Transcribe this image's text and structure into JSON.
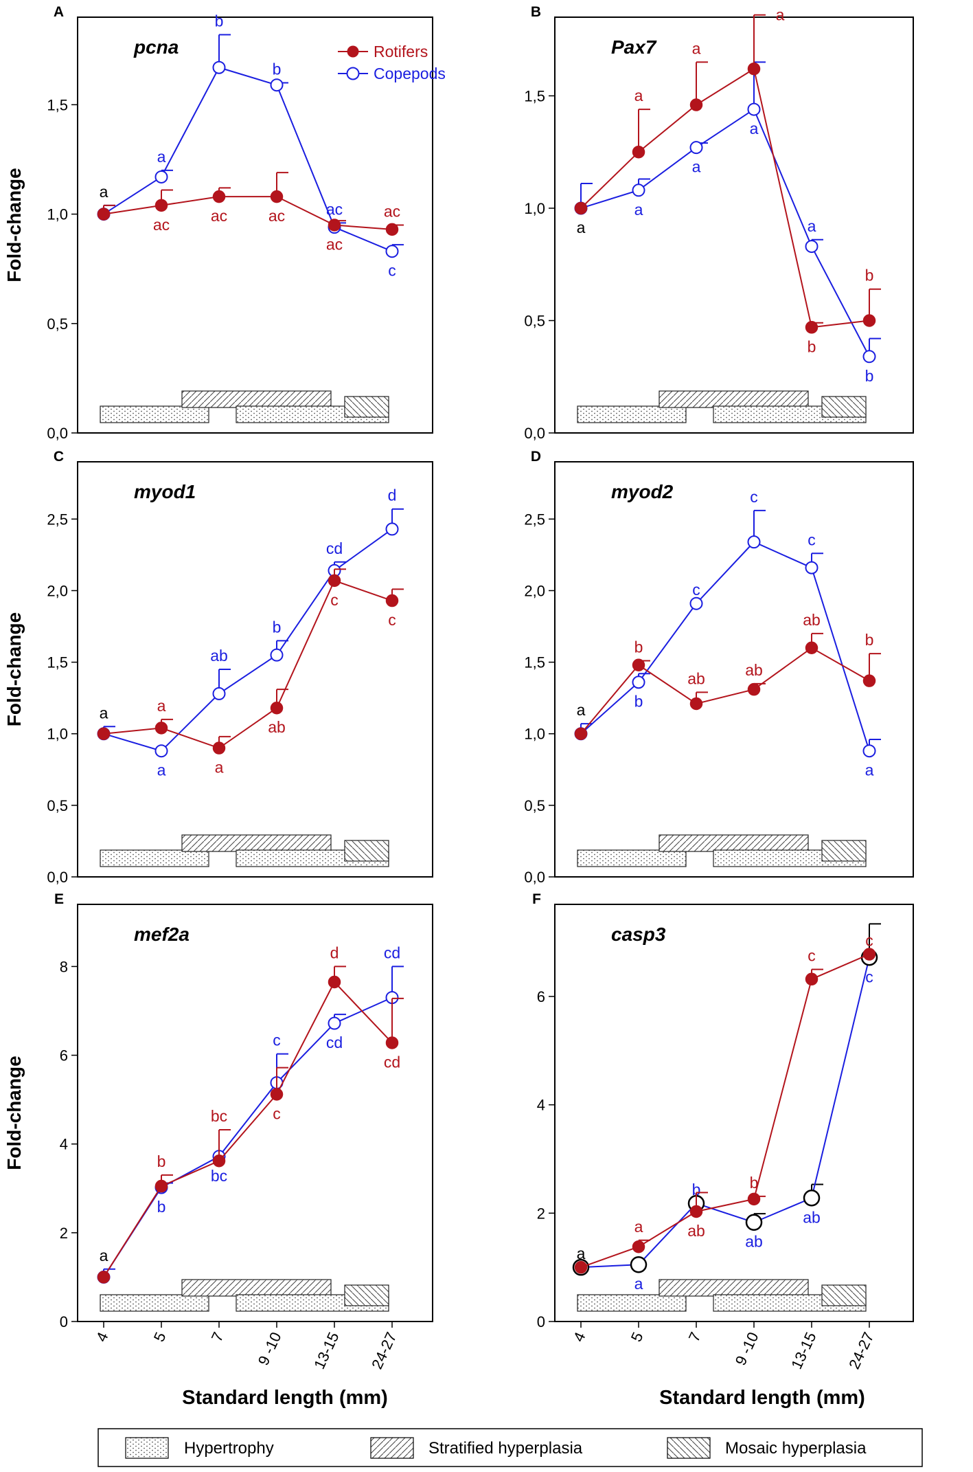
{
  "colors": {
    "rotifers": "#b3141c",
    "copepods": "#1a1ee0",
    "axis": "#000000",
    "black_label": "#000000"
  },
  "figure": {
    "xaxis_title": "Standard length (mm)",
    "legend_bottom": {
      "hypertrophy": "Hypertrophy",
      "stratified": "Stratified hyperplasia",
      "mosaic": "Mosaic hyperplasia"
    }
  },
  "chart_data": [
    {
      "type": "line",
      "panel": "A",
      "title": "pcna",
      "ylabel": "Fold-change",
      "ylim": [
        0,
        1.9
      ],
      "yticks": [
        "0,0",
        "0,5",
        "1,0",
        "1,5"
      ],
      "ytick_values": [
        0,
        0.5,
        1.0,
        1.5
      ],
      "categories": [
        "4",
        "5",
        "7",
        "9 -10",
        "13-15",
        "24-27"
      ],
      "show_xticks": false,
      "legend": [
        "Rotifers",
        "Copepods"
      ],
      "series": [
        {
          "name": "Rotifers",
          "marker": "filled",
          "values": [
            1.0,
            1.04,
            1.08,
            1.08,
            0.95,
            0.93
          ],
          "err": [
            0.04,
            0.07,
            0.04,
            0.11,
            0.02,
            0.02
          ],
          "letters": [
            "",
            "ac",
            "ac",
            "ac",
            "ac",
            "ac"
          ],
          "letter_pos": [
            "",
            "below",
            "below",
            "below",
            "below",
            "above"
          ]
        },
        {
          "name": "Copepods",
          "marker": "open",
          "values": [
            1.0,
            1.17,
            1.67,
            1.59,
            0.94,
            0.83
          ],
          "err": [
            0.04,
            0.03,
            0.15,
            0.01,
            0.02,
            0.03
          ],
          "letters": [
            "a",
            "a",
            "b",
            "b",
            "ac",
            "c"
          ],
          "letter_pos": [
            "above",
            "above",
            "above",
            "above",
            "above",
            "below"
          ]
        }
      ]
    },
    {
      "type": "line",
      "panel": "B",
      "title": "Pax7",
      "ylabel": "",
      "ylim": [
        0,
        1.85
      ],
      "yticks": [
        "0,0",
        "0,5",
        "1,0",
        "1,5"
      ],
      "ytick_values": [
        0,
        0.5,
        1.0,
        1.5
      ],
      "categories": [
        "4",
        "5",
        "7",
        "9 -10",
        "13-15",
        "24-27"
      ],
      "show_xticks": false,
      "series": [
        {
          "name": "Rotifers",
          "marker": "filled",
          "values": [
            1.0,
            1.25,
            1.46,
            1.62,
            0.47,
            0.5
          ],
          "err": [
            0.0,
            0.19,
            0.19,
            0.24,
            0.02,
            0.14
          ],
          "letters": [
            "",
            "a",
            "a",
            "a",
            "b",
            "b"
          ],
          "letter_pos": [
            "",
            "above",
            "above",
            "aboveRight",
            "below",
            "above"
          ]
        },
        {
          "name": "Copepods",
          "marker": "open",
          "values": [
            1.0,
            1.08,
            1.27,
            1.44,
            0.83,
            0.34
          ],
          "err": [
            0.11,
            0.05,
            0.02,
            0.21,
            0.03,
            0.08
          ],
          "letters": [
            "a",
            "a",
            "a",
            "a",
            "a",
            "b"
          ],
          "letter_pos": [
            "below",
            "below",
            "below",
            "below",
            "above",
            "below"
          ]
        }
      ]
    },
    {
      "type": "line",
      "panel": "C",
      "title": "myod1",
      "ylabel": "Fold-change",
      "ylim": [
        0,
        2.9
      ],
      "yticks": [
        "0,0",
        "0,5",
        "1,0",
        "1,5",
        "2,0",
        "2,5"
      ],
      "ytick_values": [
        0,
        0.5,
        1.0,
        1.5,
        2.0,
        2.5
      ],
      "categories": [
        "4",
        "5",
        "7",
        "9 -10",
        "13-15",
        "24-27"
      ],
      "show_xticks": false,
      "series": [
        {
          "name": "Rotifers",
          "marker": "filled",
          "values": [
            1.0,
            1.04,
            0.9,
            1.18,
            2.07,
            1.93
          ],
          "err": [
            0.0,
            0.06,
            0.08,
            0.13,
            0.08,
            0.08
          ],
          "letters": [
            "",
            "a",
            "a",
            "ab",
            "c",
            "c"
          ],
          "letter_pos": [
            "",
            "above",
            "below",
            "below",
            "below",
            "below"
          ]
        },
        {
          "name": "Copepods",
          "marker": "open",
          "values": [
            1.0,
            0.88,
            1.28,
            1.55,
            2.14,
            2.43
          ],
          "err": [
            0.05,
            0.0,
            0.17,
            0.1,
            0.06,
            0.14
          ],
          "letters": [
            "a",
            "a",
            "ab",
            "b",
            "cd",
            "d"
          ],
          "letter_pos": [
            "above",
            "below",
            "above",
            "above",
            "above",
            "above"
          ]
        }
      ]
    },
    {
      "type": "line",
      "panel": "D",
      "title": "myod2",
      "ylabel": "",
      "ylim": [
        0,
        2.9
      ],
      "yticks": [
        "0,0",
        "0,5",
        "1,0",
        "1,5",
        "2,0",
        "2,5"
      ],
      "ytick_values": [
        0,
        0.5,
        1.0,
        1.5,
        2.0,
        2.5
      ],
      "categories": [
        "4",
        "5",
        "7",
        "9 -10",
        "13-15",
        "24-27"
      ],
      "show_xticks": false,
      "series": [
        {
          "name": "Rotifers",
          "marker": "filled",
          "values": [
            1.0,
            1.48,
            1.21,
            1.31,
            1.6,
            1.37
          ],
          "err": [
            0.0,
            0.03,
            0.08,
            0.04,
            0.1,
            0.19
          ],
          "letters": [
            "",
            "b",
            "ab",
            "ab",
            "ab",
            "b"
          ],
          "letter_pos": [
            "",
            "above",
            "above",
            "above",
            "above",
            "above"
          ]
        },
        {
          "name": "Copepods",
          "marker": "open",
          "values": [
            1.0,
            1.36,
            1.91,
            2.34,
            2.16,
            0.88
          ],
          "err": [
            0.07,
            0.06,
            0.0,
            0.22,
            0.1,
            0.08
          ],
          "letters": [
            "a",
            "b",
            "c",
            "c",
            "c",
            "a"
          ],
          "letter_pos": [
            "above",
            "below",
            "above",
            "above",
            "above",
            "below"
          ]
        }
      ]
    },
    {
      "type": "line",
      "panel": "E",
      "title": "mef2a",
      "ylabel": "Fold-change",
      "ylim": [
        0,
        9.4
      ],
      "yticks": [
        "0",
        "2",
        "4",
        "6",
        "8"
      ],
      "ytick_values": [
        0,
        2,
        4,
        6,
        8
      ],
      "categories": [
        "4",
        "5",
        "7",
        "9 -10",
        "13-15",
        "24-27"
      ],
      "show_xticks": true,
      "series": [
        {
          "name": "Rotifers",
          "marker": "filled",
          "values": [
            1.0,
            3.05,
            3.62,
            5.12,
            7.65,
            6.28
          ],
          "err": [
            0.0,
            0.25,
            0.7,
            0.6,
            0.35,
            1.0
          ],
          "letters": [
            "",
            "b",
            "bc",
            "c",
            "d",
            "cd"
          ],
          "letter_pos": [
            "",
            "above",
            "above",
            "below",
            "above",
            "below"
          ]
        },
        {
          "name": "Copepods",
          "marker": "open",
          "values": [
            1.0,
            3.02,
            3.72,
            5.38,
            6.72,
            7.3
          ],
          "err": [
            0.18,
            0.1,
            0.0,
            0.65,
            0.2,
            0.7
          ],
          "letters": [
            "a",
            "b",
            "bc",
            "c",
            "cd",
            "cd"
          ],
          "letter_pos": [
            "above",
            "below",
            "below",
            "above",
            "below",
            "above"
          ]
        }
      ]
    },
    {
      "type": "line",
      "panel": "F",
      "title": "casp3",
      "ylabel": "",
      "ylim": [
        0,
        7.7
      ],
      "yticks": [
        "0",
        "2",
        "4",
        "6"
      ],
      "ytick_values": [
        0,
        2,
        4,
        6
      ],
      "categories": [
        "4",
        "5",
        "7",
        "9 -10",
        "13-15",
        "24-27"
      ],
      "show_xticks": true,
      "series": [
        {
          "name": "Rotifers",
          "marker": "filled",
          "values": [
            1.0,
            1.38,
            2.03,
            2.26,
            6.32,
            6.78
          ],
          "err": [
            0.0,
            0.12,
            0.35,
            0.05,
            0.18,
            0.0
          ],
          "letters": [
            "",
            "a",
            "ab",
            "b",
            "c",
            "c"
          ],
          "letter_pos": [
            "",
            "above",
            "below",
            "above",
            "above",
            "above"
          ]
        },
        {
          "name": "Copepods",
          "marker": "open_large",
          "values": [
            1.0,
            1.05,
            2.18,
            1.83,
            2.28,
            6.72
          ],
          "err": [
            0.0,
            0.0,
            0.0,
            0.16,
            0.25,
            0.62
          ],
          "letters": [
            "a",
            "a",
            "b",
            "ab",
            "ab",
            "c"
          ],
          "letter_pos": [
            "above",
            "below",
            "above",
            "below",
            "below",
            "below"
          ]
        }
      ]
    }
  ]
}
